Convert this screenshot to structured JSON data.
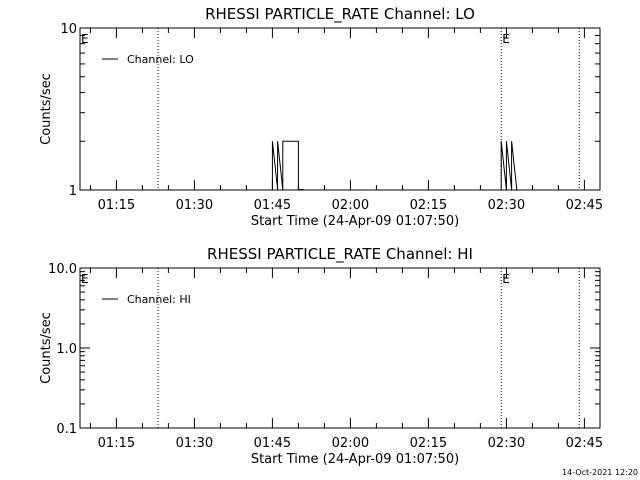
{
  "chart_data": [
    {
      "type": "line",
      "title": "RHESSI PARTICLE_RATE Channel: LO",
      "xlabel": "Start Time (24-Apr-09 01:07:50)",
      "ylabel": "Counts/sec",
      "yscale": "log",
      "xlim": [
        "01:08",
        "02:48"
      ],
      "ylim": [
        1,
        10
      ],
      "x_ticks": [
        "01:15",
        "01:30",
        "01:45",
        "02:00",
        "02:15",
        "02:30",
        "02:45"
      ],
      "y_ticks": [
        "1",
        "10"
      ],
      "legend": "top-left",
      "grid": false,
      "series": [
        {
          "name": "Channel: LO",
          "color": "#000000",
          "segments": [
            {
              "x": [
                "01:45",
                "01:45",
                "01:46",
                "01:46",
                "01:47",
                "01:47",
                "01:48",
                "01:48",
                "01:50",
                "01:50",
                "01:51",
                "01:51"
              ],
              "y": [
                1,
                2,
                1,
                2,
                1,
                2,
                2,
                2,
                2,
                1,
                1,
                1
              ]
            },
            {
              "x": [
                "02:29",
                "02:29",
                "02:30",
                "02:30",
                "02:31",
                "02:31",
                "02:32"
              ],
              "y": [
                1,
                2,
                1,
                2,
                1,
                2,
                1
              ]
            }
          ]
        }
      ],
      "event_lines": [
        "01:23",
        "02:29",
        "02:44"
      ],
      "edge_markers": [
        "E",
        "E"
      ]
    },
    {
      "type": "line",
      "title": "RHESSI PARTICLE_RATE Channel: HI",
      "xlabel": "Start Time (24-Apr-09 01:07:50)",
      "ylabel": "Counts/sec",
      "yscale": "log",
      "xlim": [
        "01:08",
        "02:48"
      ],
      "ylim": [
        0.1,
        10
      ],
      "x_ticks": [
        "01:15",
        "01:30",
        "01:45",
        "02:00",
        "02:15",
        "02:30",
        "02:45"
      ],
      "y_ticks": [
        "0.1",
        "1.0",
        "10.0"
      ],
      "legend": "top-left",
      "grid": false,
      "series": [
        {
          "name": "Channel: HI",
          "color": "#000000",
          "segments": []
        }
      ],
      "event_lines": [
        "01:23",
        "02:29",
        "02:44"
      ],
      "edge_markers": [
        "E",
        "E"
      ]
    }
  ],
  "timestamp": "14-Oct-2021 12:20"
}
